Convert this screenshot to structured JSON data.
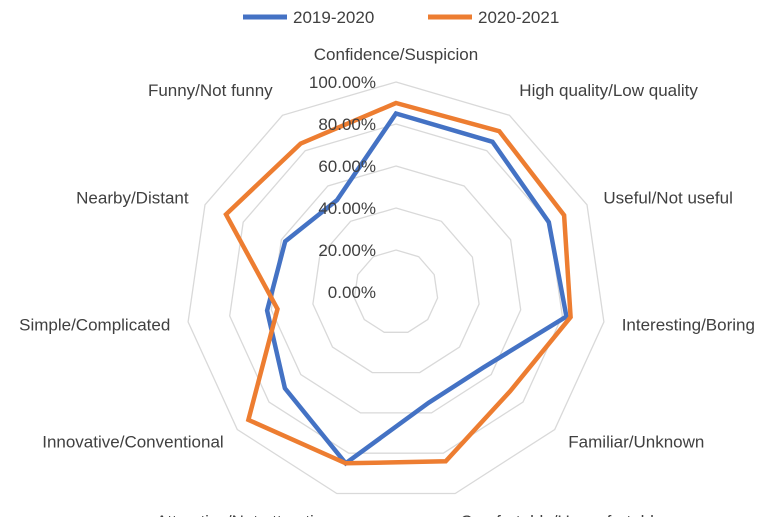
{
  "chart_data": {
    "type": "radar",
    "categories": [
      "Confidence/Suspicion",
      "High quality/Low quality",
      "Useful/Not useful",
      "Interesting/Boring",
      "Familiar/Unknown",
      "Comfortable/Unconfortable",
      "Attractive/Not attractive",
      "Innovative/Conventional",
      "Simple/Complicated",
      "Nearby/Distant",
      "Funny/Not funny"
    ],
    "series": [
      {
        "name": "2019-2020",
        "color": "#4472c4",
        "values": [
          0.85,
          0.85,
          0.8,
          0.82,
          0.55,
          0.55,
          0.85,
          0.7,
          0.62,
          0.58,
          0.52
        ]
      },
      {
        "name": "2020-2021",
        "color": "#ed7d31",
        "values": [
          0.9,
          0.91,
          0.88,
          0.84,
          0.72,
          0.84,
          0.85,
          0.93,
          0.57,
          0.89,
          0.84
        ]
      }
    ],
    "r_ticks": [
      "0.00%",
      "20.00%",
      "40.00%",
      "60.00%",
      "80.00%",
      "100.00%"
    ],
    "rlim": [
      0,
      1
    ],
    "grid": true,
    "legend_position": "top"
  }
}
